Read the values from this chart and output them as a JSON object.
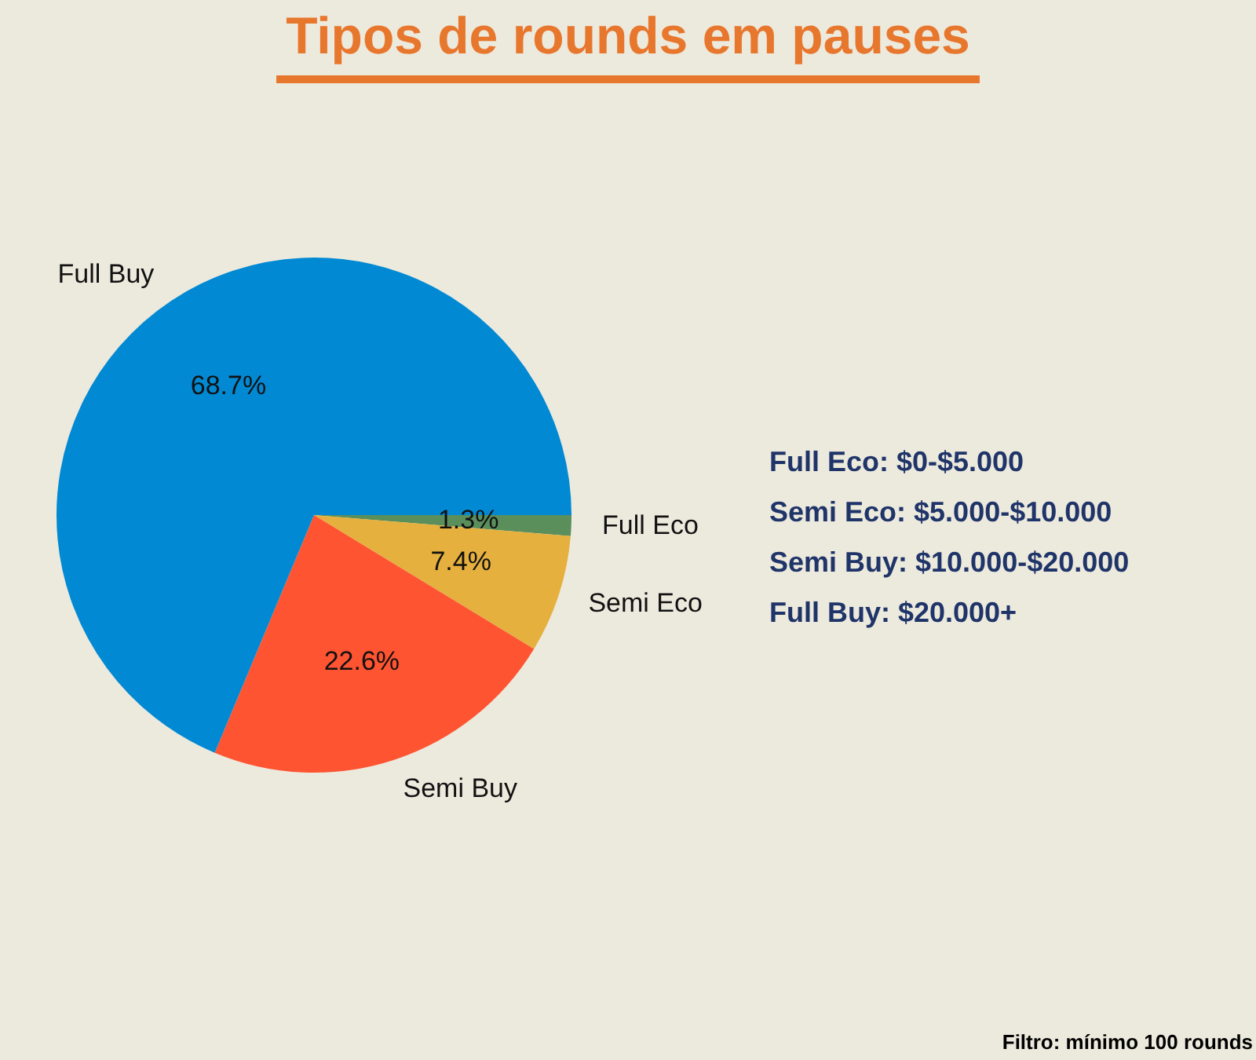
{
  "chart_data": {
    "type": "pie",
    "title": "Tipos de rounds em pauses",
    "categories": [
      "Full Eco",
      "Semi Eco",
      "Semi Buy",
      "Full Buy"
    ],
    "values": [
      1.3,
      7.4,
      22.6,
      68.7
    ],
    "colors": [
      "#5a8f5c",
      "#e6b03e",
      "#fe5431",
      "#0289d3"
    ],
    "value_labels": [
      "1.3%",
      "7.4%",
      "22.6%",
      "68.7%"
    ],
    "legend": false,
    "annotations": [
      "Full Eco: $0-$5.000",
      "Semi Eco: $5.000-$10.000",
      "Semi Buy: $10.000-$20.000",
      "Full Buy: $20.000+",
      "Filtro: mínimo 100 rounds"
    ]
  }
}
